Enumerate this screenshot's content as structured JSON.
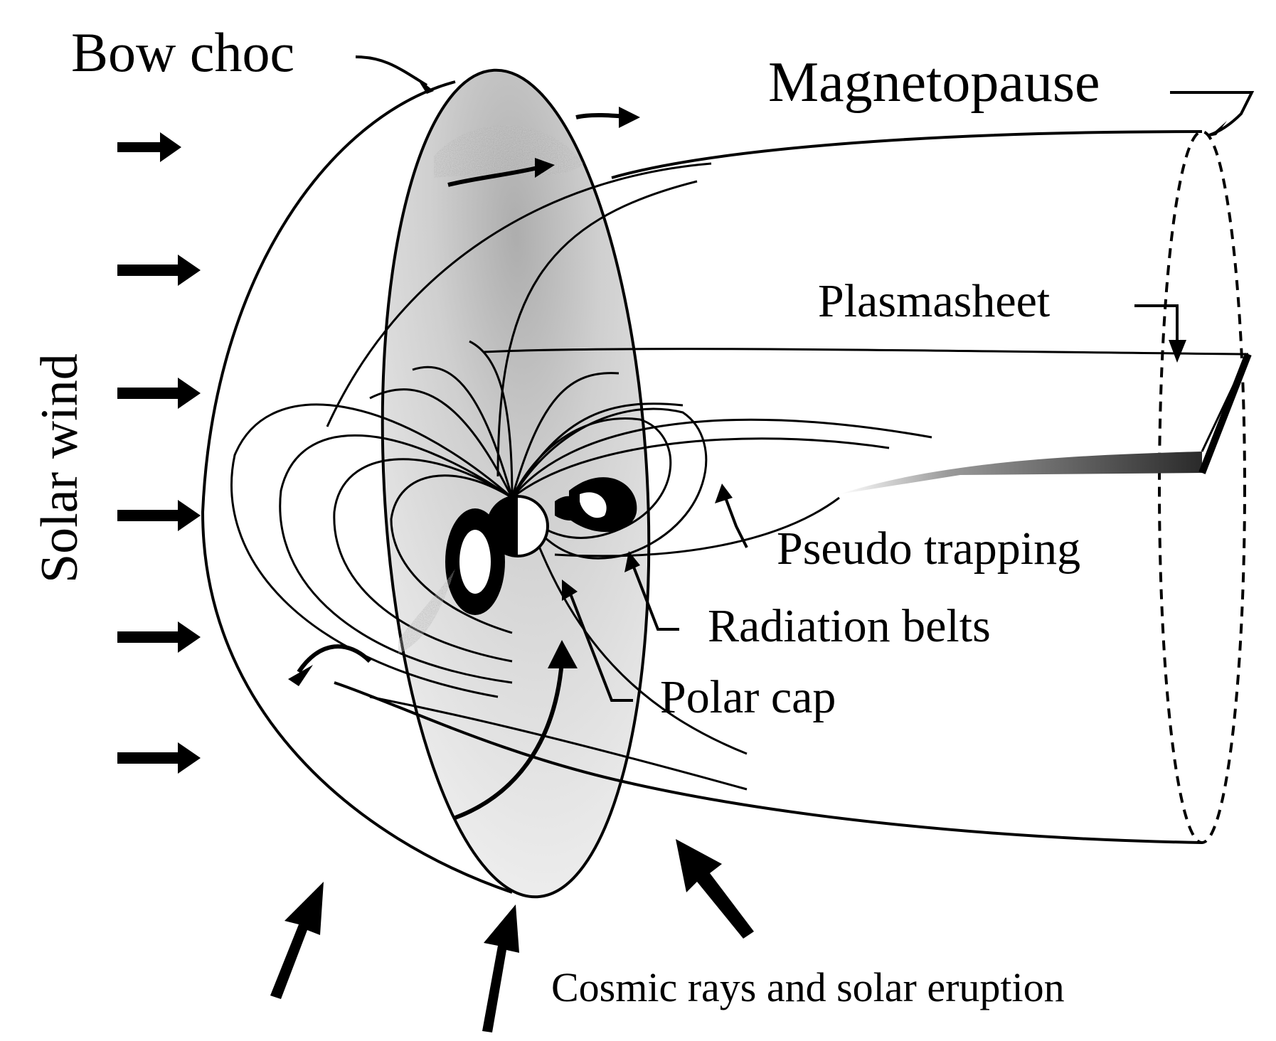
{
  "labels": {
    "bow_shock": "Bow choc",
    "magnetopause": "Magnetopause",
    "solar_wind": "Solar wind",
    "plasmasheet": "Plasmasheet",
    "pseudo_trapping": "Pseudo trapping",
    "radiation_belts": "Radiation belts",
    "polar_cap": "Polar cap",
    "cosmic_rays": "Cosmic rays and solar eruption"
  },
  "colors": {
    "ink": "#000000",
    "background": "#ffffff",
    "shade": "#bdbdbd"
  }
}
